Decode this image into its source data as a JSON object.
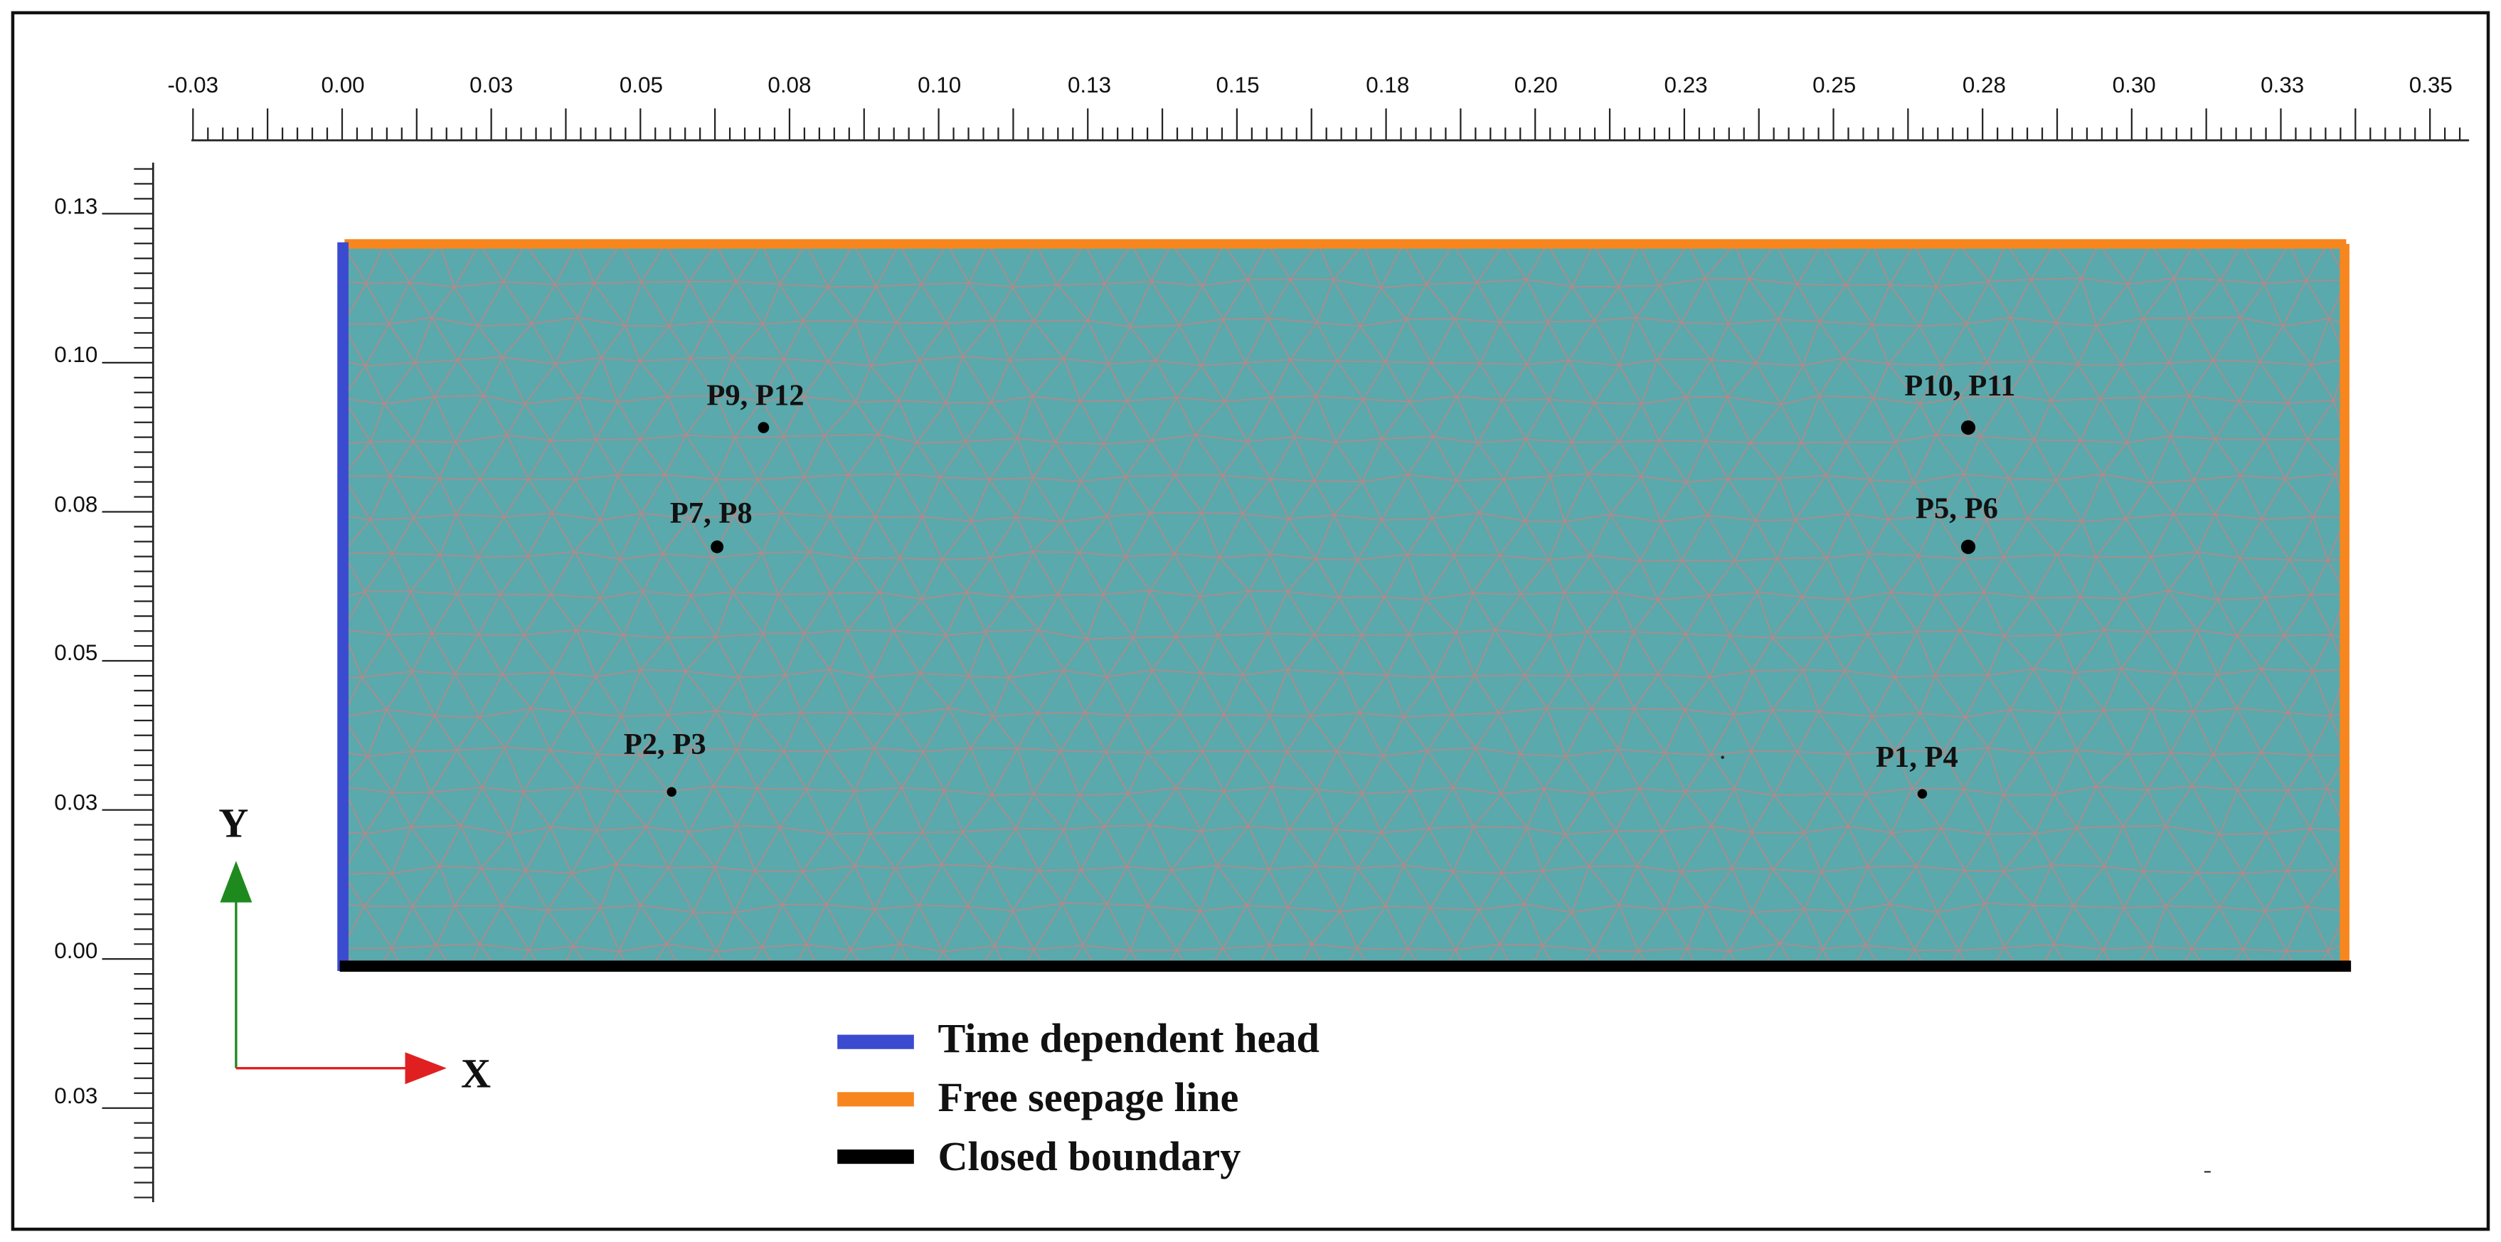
{
  "top_ruler": {
    "labels": [
      "-0.03",
      "0.00",
      "0.03",
      "0.05",
      "0.08",
      "0.10",
      "0.13",
      "0.15",
      "0.18",
      "0.20",
      "0.23",
      "0.25",
      "0.28",
      "0.30",
      "0.33",
      "0.35"
    ]
  },
  "left_ruler": {
    "labels": [
      "0.13",
      "0.10",
      "0.08",
      "0.05",
      "0.03",
      "0.00",
      "0.03"
    ]
  },
  "domain": {
    "fill_color": "#5aa9ac",
    "mesh_color": "#b48a8a"
  },
  "boundaries": {
    "time_dependent_head_color": "#3b4bd0",
    "free_seepage_color": "#f7861e",
    "closed_boundary_color": "#000000"
  },
  "points": [
    {
      "label": "P9, P12",
      "x": 0.0705,
      "y": 0.0887
    },
    {
      "label": "P7, P8",
      "x": 0.0627,
      "y": 0.0687
    },
    {
      "label": "P2, P3",
      "x": 0.0551,
      "y": 0.0276
    },
    {
      "label": "P10, P11",
      "x": 0.2724,
      "y": 0.0887
    },
    {
      "label": "P5, P6",
      "x": 0.2724,
      "y": 0.0687
    },
    {
      "label": "P1, P4",
      "x": 0.2647,
      "y": 0.0273
    }
  ],
  "coordinate_axes": {
    "y_label": "Y",
    "x_label": "X",
    "y_color": "#1e8a1e",
    "x_color": "#e02020"
  },
  "legend": {
    "items": [
      {
        "label": "Time dependent head",
        "color": "#3b4bd0"
      },
      {
        "label": "Free seepage line",
        "color": "#f7861e"
      },
      {
        "label": "Closed boundary",
        "color": "#000000"
      }
    ]
  }
}
